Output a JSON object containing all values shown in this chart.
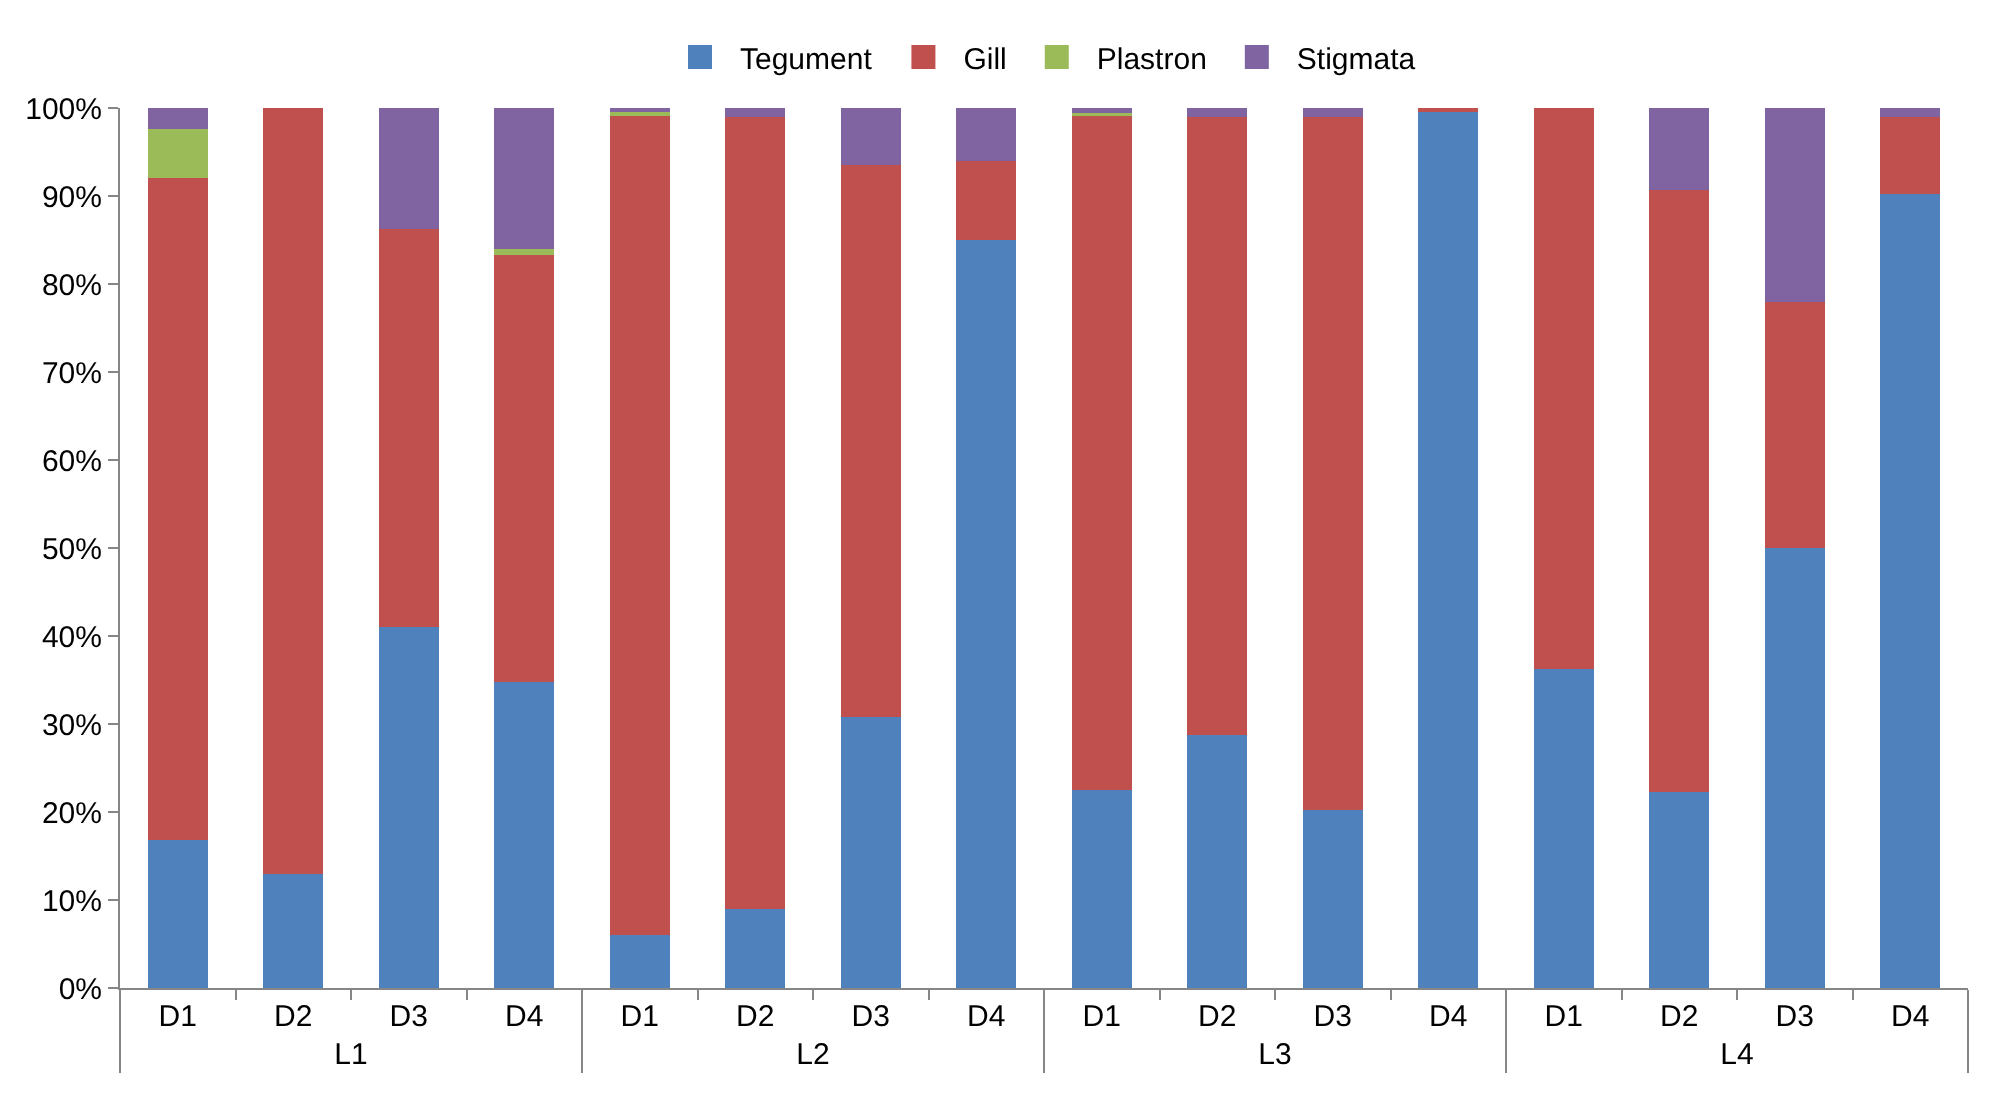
{
  "chart_data": {
    "type": "bar",
    "stacked": true,
    "categories": [
      "D1",
      "D2",
      "D3",
      "D4",
      "D1",
      "D2",
      "D3",
      "D4",
      "D1",
      "D2",
      "D3",
      "D4",
      "D1",
      "D2",
      "D3",
      "D4"
    ],
    "annotations": [
      "L1",
      "L2",
      "L3",
      "L4"
    ],
    "series": [
      {
        "name": "Tegument",
        "color": "#4f81bd",
        "values": [
          16.8,
          13,
          41,
          34.8,
          6,
          9,
          30.8,
          85,
          22.5,
          28.8,
          20.2,
          99.5,
          36.3,
          22.3,
          50,
          90.2
        ]
      },
      {
        "name": "Gill",
        "color": "#c0504d",
        "values": [
          75.2,
          87,
          45.3,
          48.5,
          93.2,
          90,
          62.7,
          9,
          76.7,
          70.2,
          78.8,
          0.5,
          63.7,
          68.4,
          28,
          8.8
        ]
      },
      {
        "name": "Plastron",
        "color": "#9bbb59",
        "values": [
          5.6,
          0,
          0,
          0.7,
          0.4,
          0,
          0,
          0,
          0.2,
          0,
          0,
          0,
          0,
          0,
          0,
          0
        ]
      },
      {
        "name": "Stigmata",
        "color": "#8064a2",
        "values": [
          2.4,
          0,
          13.7,
          16,
          0.4,
          1,
          6.5,
          6,
          0.6,
          1,
          1,
          0,
          0,
          9.3,
          22,
          1
        ]
      }
    ],
    "ylim": [
      0,
      100
    ],
    "yticks": [
      {
        "value": 0,
        "label": "0%"
      },
      {
        "value": 10,
        "label": "10%"
      },
      {
        "value": 20,
        "label": "20%"
      },
      {
        "value": 30,
        "label": "30%"
      },
      {
        "value": 40,
        "label": "40%"
      },
      {
        "value": 50,
        "label": "50%"
      },
      {
        "value": 60,
        "label": "60%"
      },
      {
        "value": 70,
        "label": "70%"
      },
      {
        "value": 80,
        "label": "80%"
      },
      {
        "value": 90,
        "label": "90%"
      },
      {
        "value": 100,
        "label": "100%"
      }
    ],
    "legend": "top"
  }
}
